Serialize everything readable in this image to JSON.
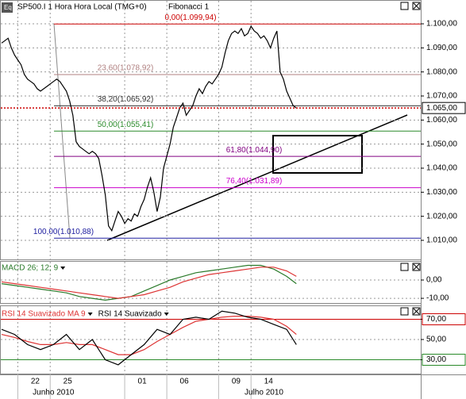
{
  "x_axis": {
    "xlim": [
      -0.5,
      129.4
    ],
    "xticks": [
      {
        "value": 5,
        "label": "22"
      },
      {
        "value": 15,
        "label": "25"
      },
      {
        "value": 38,
        "label": "01"
      },
      {
        "value": 51,
        "label": "06"
      },
      {
        "value": 67,
        "label": "09"
      },
      {
        "value": 77,
        "label": "14"
      }
    ],
    "months": [
      {
        "value": 16,
        "label": "Junho 2010"
      },
      {
        "value": 81,
        "label": "Julho 2010"
      }
    ]
  },
  "chart_data": [
    {
      "type": "line",
      "title": "SP500.I 1 Hora Hora Local (TMG+0)",
      "subtitle": "Fibonacci 1",
      "x": [
        0,
        1,
        2,
        3,
        4,
        5,
        6,
        7,
        8,
        9,
        10,
        11,
        12,
        13,
        14,
        15,
        16,
        17,
        18,
        19,
        20,
        21,
        22,
        23,
        24,
        25,
        26,
        27,
        28,
        29,
        30,
        31,
        32,
        33,
        34,
        35,
        36,
        37,
        38,
        39,
        40,
        41,
        42,
        43,
        44,
        45,
        46,
        47,
        48,
        49,
        50,
        51,
        52,
        53,
        54,
        55,
        56,
        57,
        58,
        59,
        60,
        61,
        62,
        63,
        64,
        65,
        66,
        67,
        68,
        69,
        70,
        71,
        72,
        73,
        74,
        75,
        76,
        77,
        78,
        79,
        80,
        81,
        82,
        83,
        84,
        85,
        86,
        87,
        88,
        89,
        90,
        91
      ],
      "series": [
        {
          "color": "#000000",
          "values": [
            1092,
            1093,
            1094,
            1090,
            1087,
            1085,
            1083,
            1079,
            1077,
            1076,
            1075,
            1073,
            1072,
            1073,
            1074,
            1075,
            1076,
            1077,
            1076,
            1074,
            1072,
            1068,
            1062,
            1051,
            1049,
            1048,
            1047,
            1046,
            1047,
            1046,
            1044,
            1037,
            1029,
            1016,
            1014,
            1018,
            1022,
            1020,
            1017,
            1019,
            1018,
            1021,
            1020,
            1024,
            1027,
            1032,
            1036,
            1030,
            1022,
            1028,
            1040,
            1045,
            1050,
            1057,
            1061,
            1065,
            1067,
            1062,
            1064,
            1066,
            1070,
            1073,
            1071,
            1074,
            1076,
            1075,
            1077,
            1079,
            1082,
            1088,
            1093,
            1096,
            1097,
            1096,
            1098,
            1095,
            1096,
            1099,
            1097,
            1096,
            1094,
            1095,
            1093,
            1090,
            1094,
            1097,
            1080,
            1077,
            1072,
            1069,
            1066,
            1065
          ]
        }
      ],
      "ylim": [
        1001.75,
        1109.9
      ],
      "yticks": [
        {
          "value": 1010,
          "label": "1.010,00"
        },
        {
          "value": 1020,
          "label": "1.020,00"
        },
        {
          "value": 1030,
          "label": "1.030,00"
        },
        {
          "value": 1040,
          "label": "1.040,00"
        },
        {
          "value": 1050,
          "label": "1.050,00"
        },
        {
          "value": 1060,
          "label": "1.060,00"
        },
        {
          "value": 1070,
          "label": "1.070,00"
        },
        {
          "value": 1080,
          "label": "1.080,00"
        },
        {
          "value": 1090,
          "label": "1.090,00"
        },
        {
          "value": 1100,
          "label": "1.100,00"
        }
      ],
      "grid": true,
      "price": {
        "value": 1065,
        "label": "1.065,00",
        "color": "#cc0000"
      },
      "fibonacci": [
        {
          "value": 1099.94,
          "label": "0,00(1.099,94)",
          "color": "#cc0000"
        },
        {
          "value": 1078.92,
          "label": "23,60(1.078,92)",
          "color": "#b08080"
        },
        {
          "value": 1065.92,
          "label": "38,20(1.065,92)",
          "color": "#333333"
        },
        {
          "value": 1055.41,
          "label": "50,00(1.055,41)",
          "color": "#2a8a2a"
        },
        {
          "value": 1044.9,
          "label": "61,80(1.044,90)",
          "color": "#800080"
        },
        {
          "value": 1031.89,
          "label": "76,40(1.031,89)",
          "color": "#cc00cc"
        },
        {
          "value": 1010.88,
          "label": "100,00(1.010,88)",
          "color": "#2020a0"
        }
      ]
    },
    {
      "type": "line",
      "title": "MACD 26; 12; 9",
      "title_color": "#2a7a2a",
      "x": [
        0,
        4,
        8,
        12,
        16,
        20,
        24,
        28,
        32,
        36,
        40,
        44,
        48,
        52,
        56,
        60,
        64,
        68,
        72,
        76,
        80,
        84,
        88,
        91
      ],
      "series": [
        {
          "color": "#2a7a2a",
          "values": [
            -2,
            -3,
            -4,
            -5,
            -6,
            -7,
            -9,
            -10,
            -11,
            -10,
            -9,
            -6,
            -3,
            0,
            2,
            4,
            5,
            6,
            7,
            8,
            8,
            6,
            2,
            -2
          ]
        },
        {
          "color": "#dd3333",
          "values": [
            -1,
            -2,
            -3,
            -4,
            -5,
            -6,
            -7,
            -8,
            -9,
            -10,
            -9,
            -8,
            -6,
            -4,
            -1,
            1,
            3,
            4,
            5,
            6,
            7,
            7,
            5,
            2
          ]
        }
      ],
      "ylim": [
        -13,
        10.4
      ],
      "yticks": [
        {
          "value": -10,
          "label": "-10,00"
        },
        {
          "value": 0,
          "label": "0,00"
        }
      ],
      "grid": true
    },
    {
      "type": "line",
      "x": [
        0,
        4,
        8,
        12,
        16,
        20,
        24,
        28,
        32,
        36,
        40,
        44,
        48,
        52,
        56,
        60,
        64,
        68,
        72,
        76,
        80,
        84,
        88,
        91
      ],
      "series": [
        {
          "name": "RSI 14 Suavizado MA 9",
          "color": "#dd3333",
          "values": [
            55,
            52,
            48,
            45,
            45,
            47,
            45,
            45,
            40,
            35,
            35,
            40,
            48,
            55,
            62,
            68,
            70,
            72,
            73,
            73,
            72,
            70,
            63,
            55
          ]
        },
        {
          "name": "RSI 14 Suavizado",
          "color": "#000000",
          "values": [
            60,
            55,
            45,
            40,
            45,
            55,
            40,
            50,
            30,
            25,
            35,
            45,
            60,
            55,
            70,
            72,
            70,
            78,
            76,
            72,
            70,
            65,
            60,
            45
          ]
        }
      ],
      "ylim": [
        15.5,
        83.7
      ],
      "yticks": [
        {
          "value": 30,
          "label": "30,00"
        },
        {
          "value": 50,
          "label": "50,00"
        },
        {
          "value": 70,
          "label": "70,00"
        }
      ],
      "levels": [
        {
          "value": 70,
          "color": "#cc0000"
        },
        {
          "value": 30,
          "color": "#2a8a2a"
        }
      ],
      "grid": true
    }
  ]
}
